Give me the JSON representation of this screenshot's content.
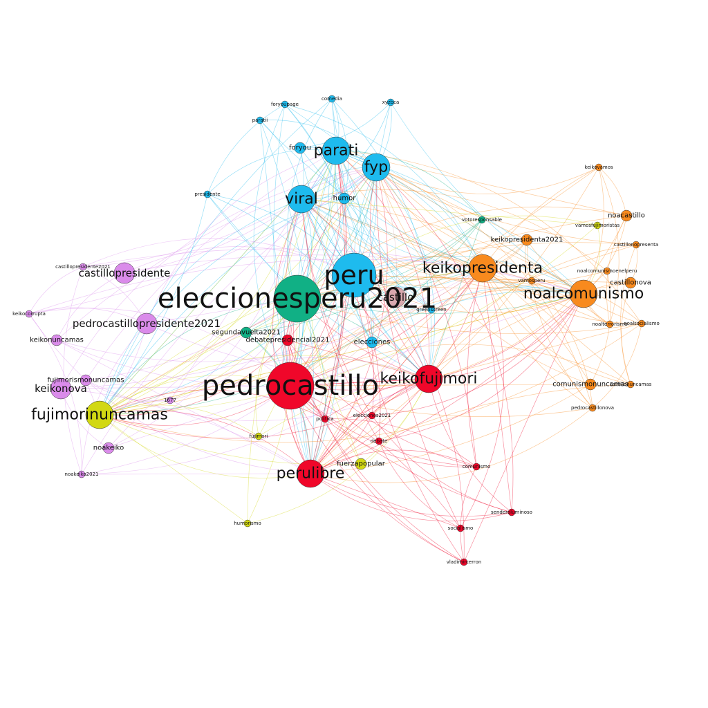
{
  "community_colors": {
    "cyan": "#1EBBEE",
    "green": "#11B085",
    "red": "#F0072A",
    "orange": "#F88A1E",
    "violet": "#DA8BEA",
    "yellow": "#D2D813",
    "rose": "#D8A8AE"
  },
  "nodes": [
    {
      "id": "eleccionesperu2021",
      "label": "eleccionesperu2021",
      "group": "green",
      "size": 5
    },
    {
      "id": "pedrocastillo",
      "label": "pedrocastillo",
      "group": "red",
      "size": 5
    },
    {
      "id": "peru",
      "label": "peru",
      "group": "cyan",
      "size": 4
    },
    {
      "id": "parati",
      "label": "parati",
      "group": "cyan",
      "size": 3
    },
    {
      "id": "fyp",
      "label": "fyp",
      "group": "cyan",
      "size": 3
    },
    {
      "id": "viral",
      "label": "viral",
      "group": "cyan",
      "size": 3
    },
    {
      "id": "keikofujimori",
      "label": "keikofujimori",
      "group": "red",
      "size": 3
    },
    {
      "id": "keikopresidenta",
      "label": "keikopresidenta",
      "group": "orange",
      "size": 3
    },
    {
      "id": "noalcomunismo",
      "label": "noalcomunismo",
      "group": "orange",
      "size": 3
    },
    {
      "id": "fujimorinuncamas",
      "label": "fujimorinuncamas",
      "group": "yellow",
      "size": 3
    },
    {
      "id": "perulibre",
      "label": "perulibre",
      "group": "red",
      "size": 3
    },
    {
      "id": "keikonova",
      "label": "keikonova",
      "group": "violet",
      "size": 2
    },
    {
      "id": "pedrocastillopresidente2021",
      "label": "pedrocastillopresidente2021",
      "group": "violet",
      "size": 2
    },
    {
      "id": "castillopresidente",
      "label": "castillopresidente",
      "group": "violet",
      "size": 2
    },
    {
      "id": "castillo",
      "label": "castillo",
      "group": "rose",
      "size": 2
    },
    {
      "id": "humor",
      "label": "humor",
      "group": "cyan",
      "size": 1
    },
    {
      "id": "foryou",
      "label": "foryou",
      "group": "cyan",
      "size": 1
    },
    {
      "id": "keikonuncamas",
      "label": "keikonuncamas",
      "group": "violet",
      "size": 1
    },
    {
      "id": "fujimorismonuncamas",
      "label": "fujimorismonuncamas",
      "group": "violet",
      "size": 1
    },
    {
      "id": "noakeiko",
      "label": "noakeiko",
      "group": "violet",
      "size": 1
    },
    {
      "id": "segundavuelta2021",
      "label": "segundavuelta2021",
      "group": "green",
      "size": 1
    },
    {
      "id": "debatepresidencial2021",
      "label": "debatepresidencial2021",
      "group": "red",
      "size": 1
    },
    {
      "id": "elecciones",
      "label": "elecciones",
      "group": "cyan",
      "size": 1
    },
    {
      "id": "keikopresidenta2021",
      "label": "keikopresidenta2021",
      "group": "orange",
      "size": 1
    },
    {
      "id": "noacastillo",
      "label": "noacastillo",
      "group": "orange",
      "size": 1
    },
    {
      "id": "castillonova",
      "label": "castillonova",
      "group": "orange",
      "size": 1
    },
    {
      "id": "comunismonuncamas",
      "label": "comunismonuncamas",
      "group": "orange",
      "size": 1
    },
    {
      "id": "fuerzapopular",
      "label": "fuerzapopular",
      "group": "yellow",
      "size": 1
    },
    {
      "id": "castillopresidente2021",
      "label": "castillopresidente2021",
      "group": "violet",
      "size": 0
    },
    {
      "id": "comunismo",
      "label": "comunismo",
      "group": "red",
      "size": 0
    },
    {
      "id": "fujimori",
      "label": "fujimori",
      "group": "yellow",
      "size": 0
    },
    {
      "id": "debate",
      "label": "debate",
      "group": "red",
      "size": 0
    },
    {
      "id": "noakeiko2021",
      "label": "noakeiko2021",
      "group": "violet",
      "size": 0
    },
    {
      "id": "castillonopresenta",
      "label": "castillonopresenta",
      "group": "orange",
      "size": 0
    },
    {
      "id": "noalcomunismoenelperu",
      "label": "noalcomunismoenelperu",
      "group": "orange",
      "size": 0
    },
    {
      "id": "pedrocastillonova",
      "label": "pedrocastillonova",
      "group": "orange",
      "size": 0
    },
    {
      "id": "votoresponsable",
      "label": "votoresponsable",
      "group": "green",
      "size": 0
    },
    {
      "id": "vamosfujimoristas",
      "label": "vamosfujimoristas",
      "group": "yellow",
      "size": 0
    },
    {
      "id": "foryoupage",
      "label": "foryoupage",
      "group": "cyan",
      "size": 0
    },
    {
      "id": "comedia",
      "label": "comedia",
      "group": "cyan",
      "size": 0
    },
    {
      "id": "xyzbca",
      "label": "xyzbca",
      "group": "cyan",
      "size": 0
    },
    {
      "id": "parati2",
      "label": "paratii",
      "group": "cyan",
      "size": 0
    },
    {
      "id": "presidente",
      "label": "presidente",
      "group": "cyan",
      "size": 0
    },
    {
      "id": "greenscreen",
      "label": "greenscreen",
      "group": "cyan",
      "size": 0
    },
    {
      "id": "keikocorrupta",
      "label": "keikocorrupta",
      "group": "violet",
      "size": 0
    },
    {
      "id": "politica",
      "label": "politica",
      "group": "red",
      "size": 0
    },
    {
      "id": "elecciones2021",
      "label": "elecciones2021",
      "group": "red",
      "size": 0
    },
    {
      "id": "socialismo",
      "label": "socialismo",
      "group": "red",
      "size": 0
    },
    {
      "id": "humorismo",
      "label": "humorismo",
      "group": "yellow",
      "size": 0
    },
    {
      "id": "vladimircerron",
      "label": "vladimircerron",
      "group": "red",
      "size": 0
    },
    {
      "id": "sendero",
      "label": "senderoluminoso",
      "group": "red",
      "size": 0
    },
    {
      "id": "noalsocialismo",
      "label": "noalsocialismo",
      "group": "orange",
      "size": 0
    },
    {
      "id": "noalterrorismo",
      "label": "noalterrorismo",
      "group": "orange",
      "size": 0
    },
    {
      "id": "castillonuncamas",
      "label": "castillonuncamas",
      "group": "orange",
      "size": 0
    },
    {
      "id": "1677",
      "label": "1677",
      "group": "violet",
      "size": 0
    },
    {
      "id": "vamosperu",
      "label": "vamosperu",
      "group": "orange",
      "size": 0
    },
    {
      "id": "keikovamos",
      "label": "keikovamos",
      "group": "orange",
      "size": 0
    }
  ]
}
